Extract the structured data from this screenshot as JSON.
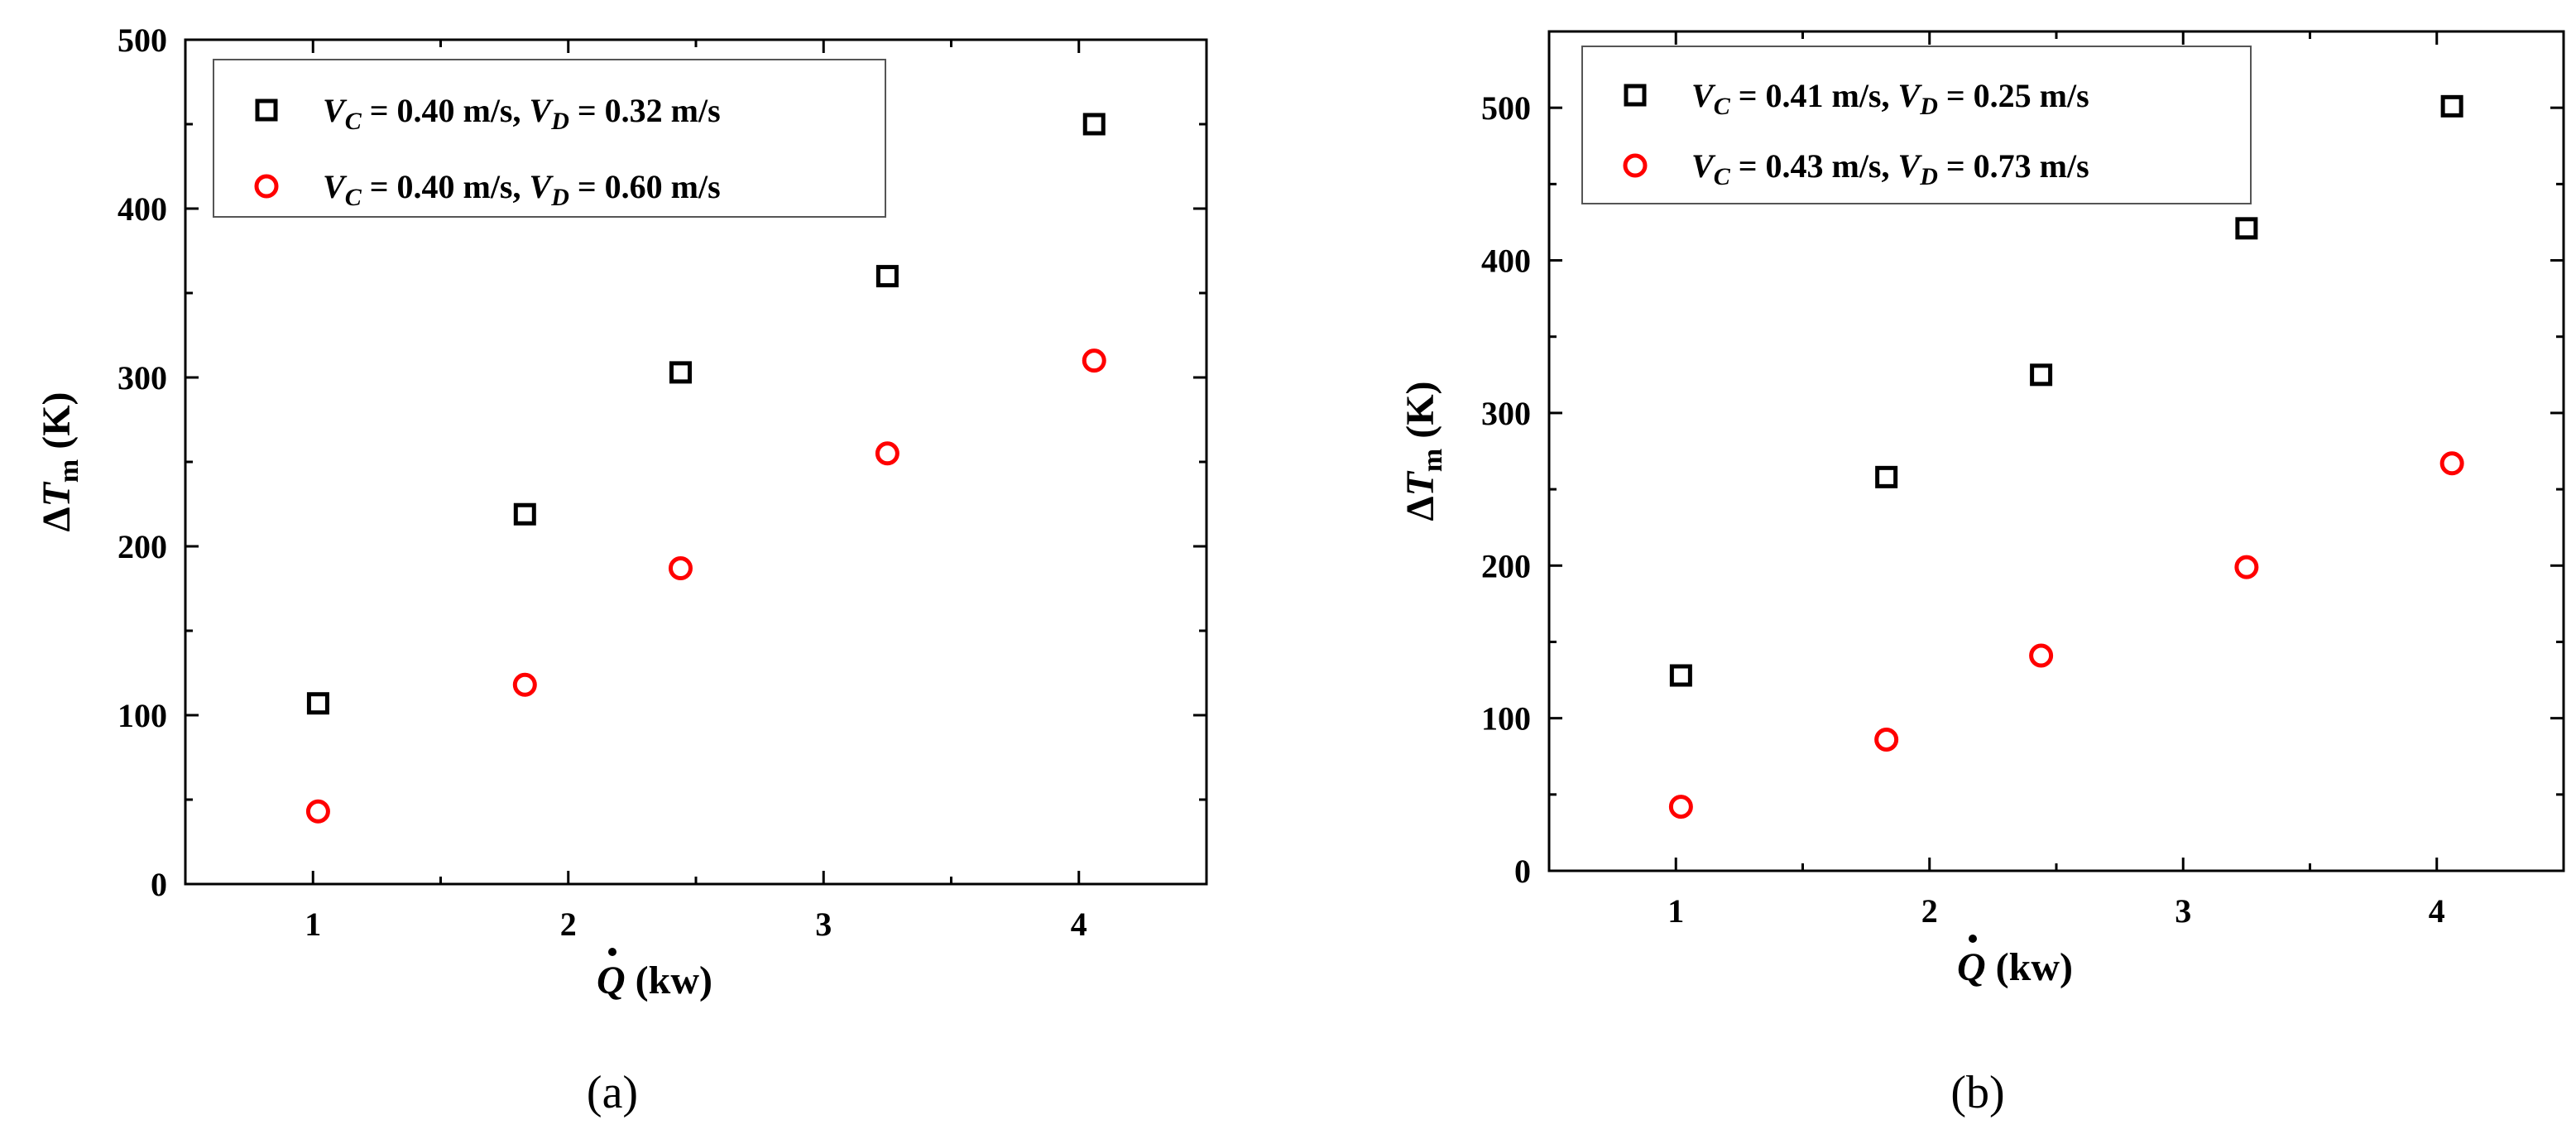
{
  "panels": [
    {
      "panel_label": "(a)",
      "legend": [
        {
          "vc_value": "= 0.40 m/s,",
          "vd_value": "= 0.32 m/s"
        },
        {
          "vc_value": "= 0.40 m/s,",
          "vd_value": "= 0.60 m/s"
        }
      ]
    },
    {
      "panel_label": "(b)",
      "legend": [
        {
          "vc_value": "= 0.41 m/s,",
          "vd_value": "= 0.25 m/s"
        },
        {
          "vc_value": "= 0.43 m/s,",
          "vd_value": "= 0.73 m/s"
        }
      ]
    }
  ],
  "axis_text": {
    "xlabel_symbol": "Q",
    "xlabel_unit": "(kw)",
    "ylabel_delta": "Δ",
    "ylabel_symbol": "T",
    "ylabel_subscript": "m",
    "ylabel_unit": "(K)",
    "legend_v": "V",
    "legend_c": "C",
    "legend_d": "D"
  },
  "colors": {
    "series_1": "#000000",
    "series_2": "#ff0000"
  },
  "chart_data": [
    {
      "type": "scatter",
      "xlabel": "Q̇ (kw)",
      "ylabel": "ΔTm (K)",
      "xlim": [
        0.5,
        4.5
      ],
      "ylim": [
        0,
        500
      ],
      "x_ticks": [
        1,
        2,
        3,
        4
      ],
      "y_ticks": [
        0,
        100,
        200,
        300,
        400,
        500
      ],
      "legend_position": "top-left",
      "series": [
        {
          "name": "VC = 0.40 m/s, VD = 0.32 m/s",
          "marker": "square",
          "color": "#000000",
          "x": [
            1.02,
            1.83,
            2.44,
            3.25,
            4.06
          ],
          "y": [
            107,
            219,
            303,
            360,
            450
          ]
        },
        {
          "name": "VC = 0.40 m/s, VD = 0.60 m/s",
          "marker": "circle",
          "color": "#ff0000",
          "x": [
            1.02,
            1.83,
            2.44,
            3.25,
            4.06
          ],
          "y": [
            43,
            118,
            187,
            255,
            310
          ]
        }
      ]
    },
    {
      "type": "scatter",
      "xlabel": "Q̇ (kw)",
      "ylabel": "ΔTm (K)",
      "xlim": [
        0.5,
        4.5
      ],
      "ylim": [
        0,
        550
      ],
      "x_ticks": [
        1,
        2,
        3,
        4
      ],
      "y_ticks": [
        0,
        100,
        200,
        300,
        400,
        500
      ],
      "legend_position": "top-left",
      "series": [
        {
          "name": "VC = 0.41 m/s, VD = 0.25 m/s",
          "marker": "square",
          "color": "#000000",
          "x": [
            1.02,
            1.83,
            2.44,
            3.25,
            4.06
          ],
          "y": [
            128,
            258,
            325,
            421,
            501
          ]
        },
        {
          "name": "VC = 0.43 m/s, VD = 0.73 m/s",
          "marker": "circle",
          "color": "#ff0000",
          "x": [
            1.02,
            1.83,
            2.44,
            3.25,
            4.06
          ],
          "y": [
            42,
            86,
            141,
            199,
            267
          ]
        }
      ]
    }
  ]
}
